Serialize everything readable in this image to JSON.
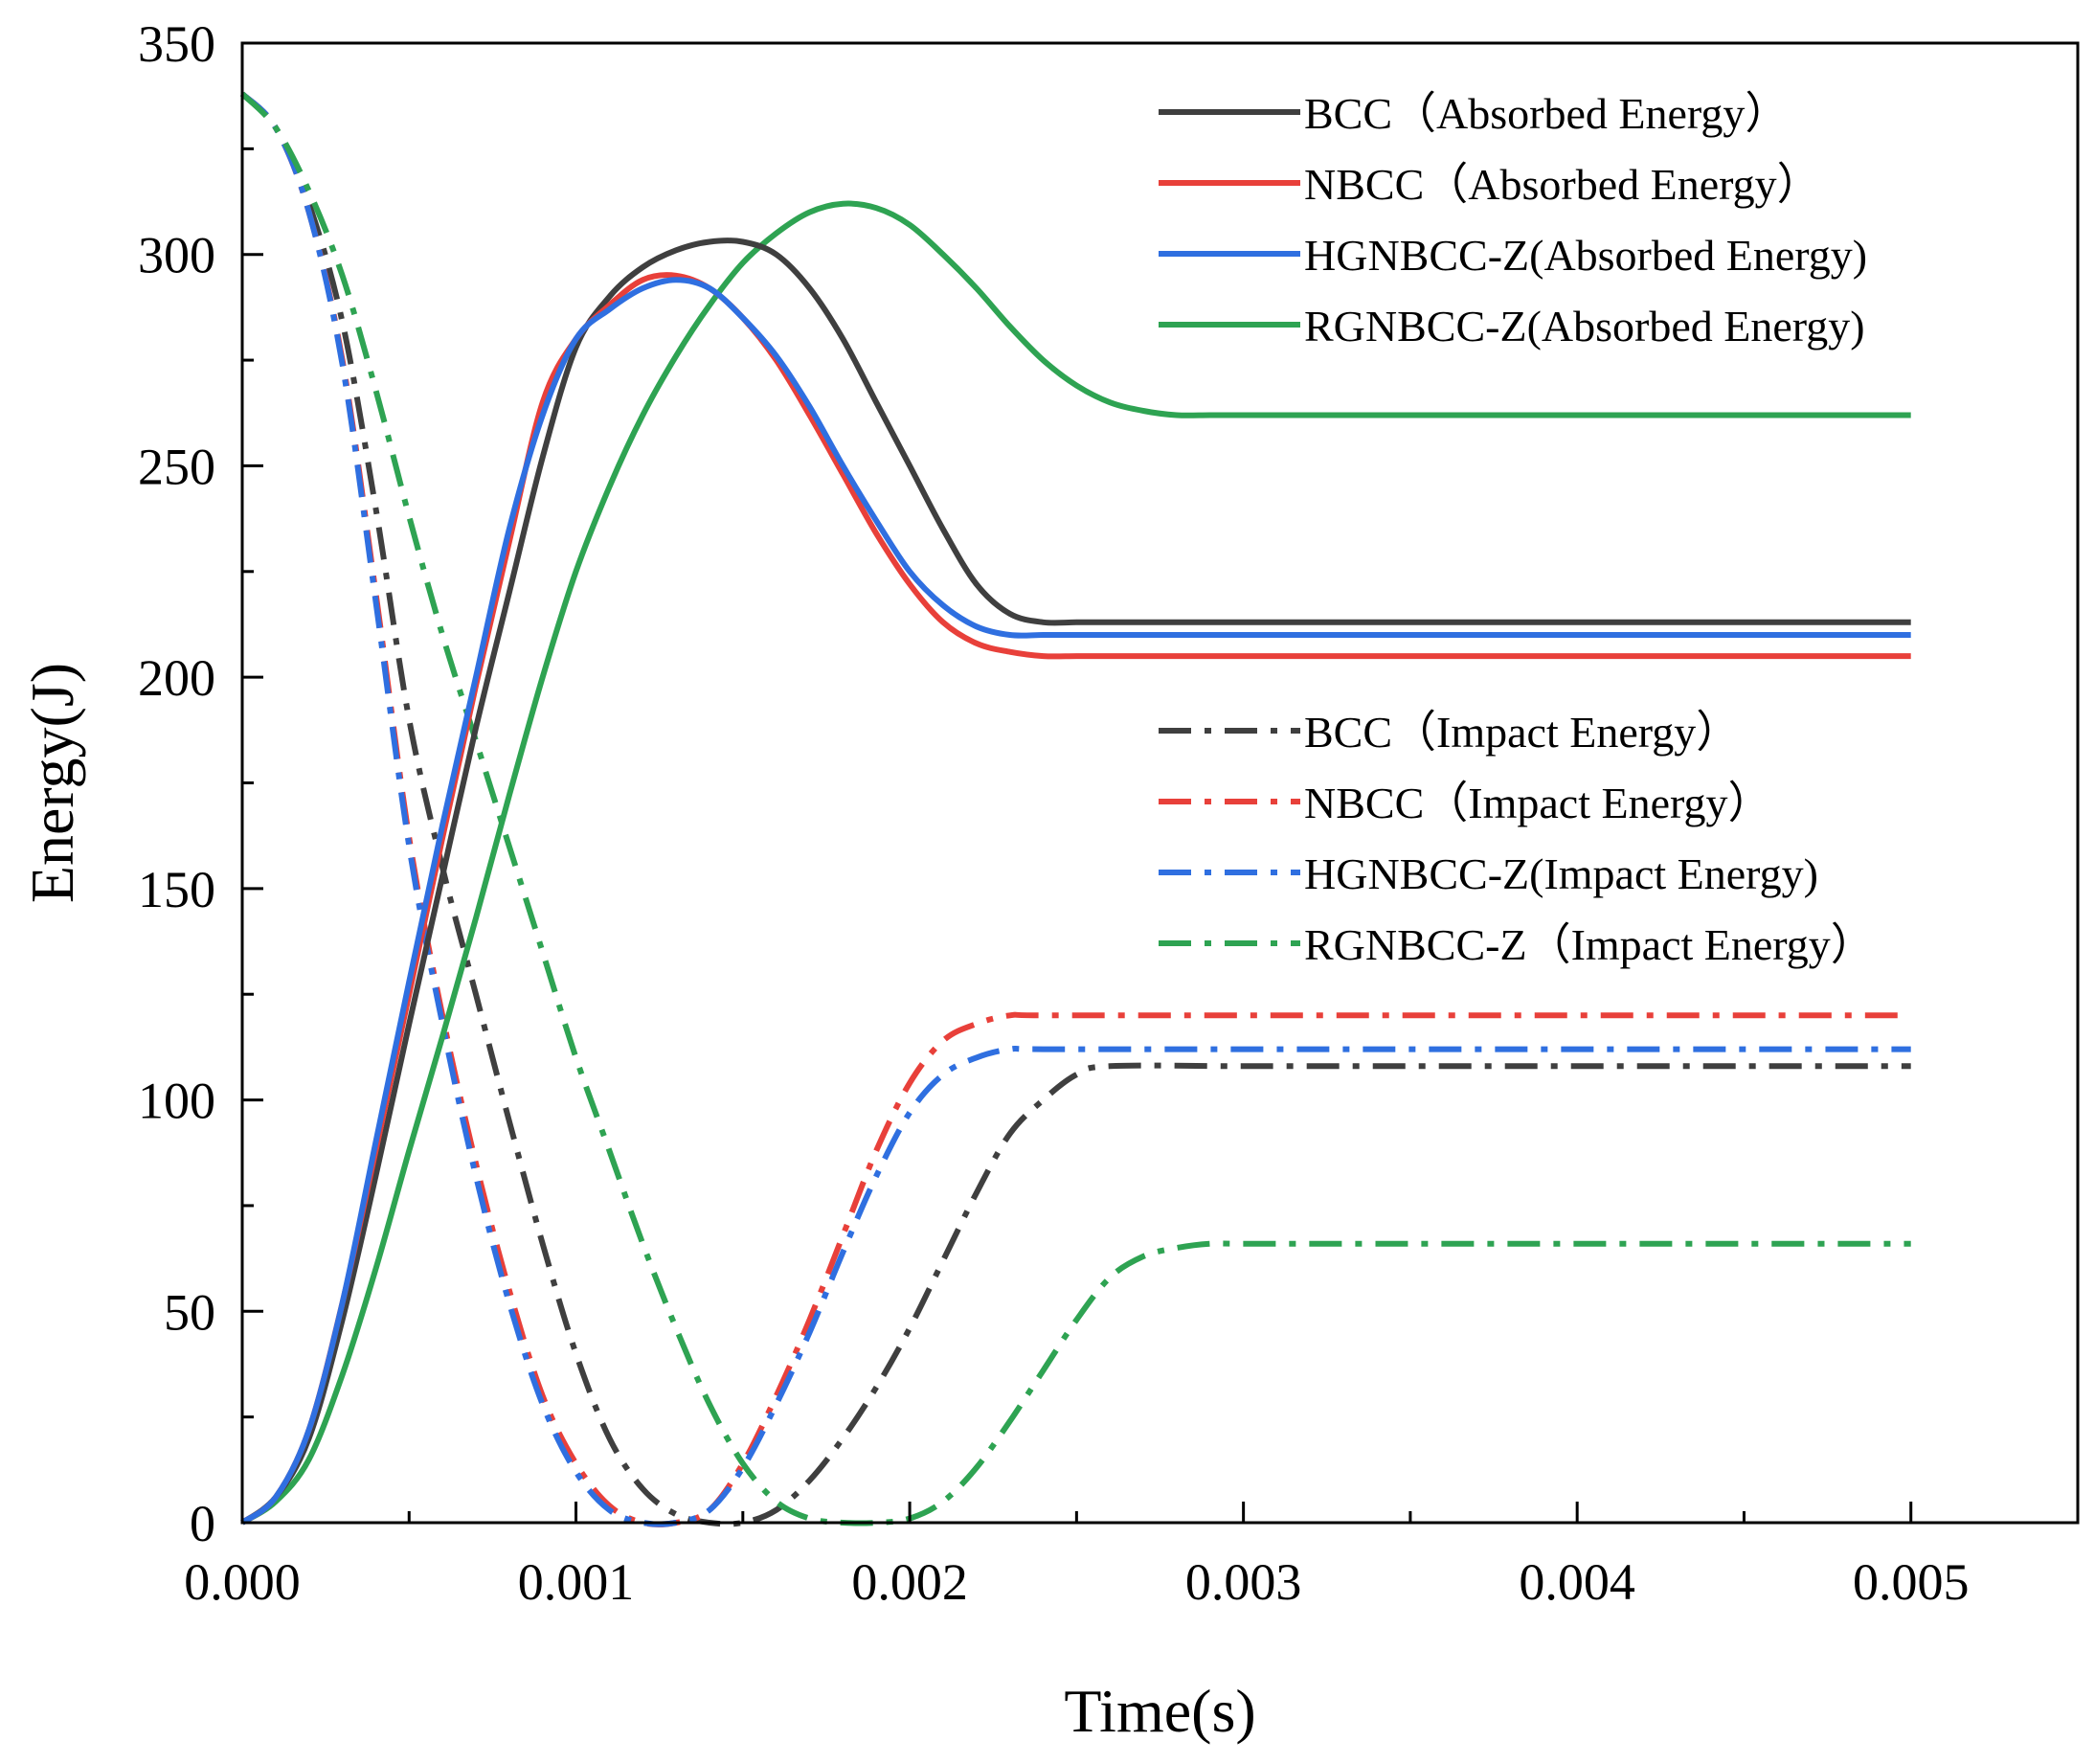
{
  "chart_data": {
    "type": "line",
    "title": "",
    "xlabel": "Time(s)",
    "ylabel": "Energy(J)",
    "xlim": [
      0,
      0.0055
    ],
    "ylim": [
      0,
      350
    ],
    "xticks": [
      0.0,
      0.001,
      0.002,
      0.003,
      0.004,
      0.005
    ],
    "xtick_labels": [
      "0.000",
      "0.001",
      "0.002",
      "0.003",
      "0.004",
      "0.005"
    ],
    "yticks": [
      0,
      50,
      100,
      150,
      200,
      250,
      300,
      350
    ],
    "ytick_labels": [
      "0",
      "50",
      "100",
      "150",
      "200",
      "250",
      "300",
      "350"
    ],
    "grid": false,
    "legend_position": "right",
    "series": [
      {
        "name": "BCC（Absorbed Energy）",
        "group": "absorbed",
        "style": "solid",
        "color": "#3f3f3f",
        "x": [
          0,
          0.0001,
          0.0002,
          0.0003,
          0.0004,
          0.0005,
          0.0006,
          0.0007,
          0.0008,
          0.0009,
          0.001,
          0.0011,
          0.0012,
          0.0013,
          0.0014,
          0.0015,
          0.0016,
          0.0017,
          0.0018,
          0.0019,
          0.002,
          0.0021,
          0.0022,
          0.0023,
          0.0024,
          0.0025,
          0.0026,
          0.0027,
          0.0028,
          0.003,
          0.0035,
          0.004,
          0.0045,
          0.005
        ],
        "y": [
          0,
          6,
          20,
          48,
          82,
          118,
          153,
          188,
          220,
          252,
          278,
          290,
          297,
          301,
          303,
          303,
          300,
          292,
          280,
          265,
          250,
          235,
          222,
          215,
          213,
          213,
          213,
          213,
          213,
          213,
          213,
          213,
          213,
          213
        ]
      },
      {
        "name": "NBCC（Absorbed Energy）",
        "group": "absorbed",
        "style": "solid",
        "color": "#e8403a",
        "x": [
          0,
          0.0001,
          0.0002,
          0.0003,
          0.0004,
          0.0005,
          0.0006,
          0.0007,
          0.0008,
          0.0009,
          0.001,
          0.0011,
          0.0012,
          0.0013,
          0.0014,
          0.0015,
          0.0016,
          0.0017,
          0.0018,
          0.0019,
          0.002,
          0.0021,
          0.0022,
          0.0023,
          0.0024,
          0.0025,
          0.0026,
          0.003,
          0.0035,
          0.004,
          0.0045,
          0.005
        ],
        "y": [
          0,
          6,
          22,
          52,
          88,
          125,
          162,
          198,
          232,
          265,
          280,
          288,
          294,
          295,
          292,
          285,
          275,
          262,
          248,
          234,
          222,
          213,
          208,
          206,
          205,
          205,
          205,
          205,
          205,
          205,
          205,
          205
        ]
      },
      {
        "name": "HGNBCC-Z(Absorbed Energy)",
        "group": "absorbed",
        "style": "solid",
        "color": "#2f6fe0",
        "x": [
          0,
          0.0001,
          0.0002,
          0.0003,
          0.0004,
          0.0005,
          0.0006,
          0.0007,
          0.0008,
          0.0009,
          0.001,
          0.0011,
          0.0012,
          0.0013,
          0.0014,
          0.0015,
          0.0016,
          0.0017,
          0.0018,
          0.0019,
          0.002,
          0.0021,
          0.0022,
          0.0023,
          0.0024,
          0.0025,
          0.0026,
          0.003,
          0.0035,
          0.004,
          0.0045,
          0.005
        ],
        "y": [
          0,
          6,
          22,
          52,
          90,
          128,
          165,
          200,
          235,
          262,
          280,
          287,
          292,
          294,
          292,
          285,
          276,
          264,
          250,
          237,
          225,
          217,
          212,
          210,
          210,
          210,
          210,
          210,
          210,
          210,
          210,
          210
        ]
      },
      {
        "name": "RGNBCC-Z(Absorbed Energy)",
        "group": "absorbed",
        "style": "solid",
        "color": "#2ea352",
        "x": [
          0,
          0.0001,
          0.0002,
          0.0003,
          0.0004,
          0.0005,
          0.0006,
          0.0007,
          0.0008,
          0.0009,
          0.001,
          0.0011,
          0.0012,
          0.0013,
          0.0014,
          0.0015,
          0.0016,
          0.0017,
          0.0018,
          0.0019,
          0.002,
          0.0021,
          0.0022,
          0.0023,
          0.0024,
          0.0025,
          0.0026,
          0.0027,
          0.0028,
          0.0029,
          0.003,
          0.0035,
          0.004,
          0.0045,
          0.005
        ],
        "y": [
          0,
          5,
          15,
          35,
          60,
          88,
          115,
          143,
          172,
          200,
          225,
          245,
          262,
          276,
          288,
          298,
          305,
          310,
          312,
          311,
          307,
          300,
          292,
          283,
          275,
          269,
          265,
          263,
          262,
          262,
          262,
          262,
          262,
          262,
          262
        ]
      },
      {
        "name": "BCC（Impact Energy）",
        "group": "impact",
        "style": "dashdot",
        "color": "#3f3f3f",
        "x": [
          0,
          0.0001,
          0.0002,
          0.0003,
          0.0004,
          0.0005,
          0.0006,
          0.0007,
          0.0008,
          0.0009,
          0.001,
          0.0011,
          0.0012,
          0.0013,
          0.0014,
          0.0015,
          0.0016,
          0.0017,
          0.0018,
          0.0019,
          0.002,
          0.0021,
          0.0022,
          0.0023,
          0.0024,
          0.0025,
          0.0026,
          0.003,
          0.0035,
          0.004,
          0.0045,
          0.005
        ],
        "y": [
          338,
          330,
          312,
          284,
          240,
          190,
          155,
          125,
          95,
          66,
          40,
          20,
          8,
          2,
          0,
          0,
          3,
          10,
          20,
          32,
          46,
          62,
          78,
          92,
          100,
          106,
          108,
          108,
          108,
          108,
          108,
          108
        ]
      },
      {
        "name": "NBCC（Impact Energy）",
        "group": "impact",
        "style": "dashdot",
        "color": "#e8403a",
        "x": [
          0,
          0.0001,
          0.0002,
          0.0003,
          0.0004,
          0.0005,
          0.0006,
          0.0007,
          0.0008,
          0.0009,
          0.001,
          0.0011,
          0.0012,
          0.0013,
          0.0014,
          0.0015,
          0.0016,
          0.0017,
          0.0018,
          0.0019,
          0.002,
          0.0021,
          0.0022,
          0.0023,
          0.0024,
          0.003,
          0.0035,
          0.004,
          0.0045,
          0.005
        ],
        "y": [
          338,
          330,
          310,
          275,
          220,
          162,
          120,
          85,
          55,
          30,
          14,
          4,
          0,
          0,
          3,
          14,
          30,
          48,
          68,
          88,
          104,
          114,
          118,
          120,
          120,
          120,
          120,
          120,
          120,
          120
        ]
      },
      {
        "name": "HGNBCC-Z(Impact Energy)",
        "group": "impact",
        "style": "dashdot",
        "color": "#2f6fe0",
        "x": [
          0,
          0.0001,
          0.0002,
          0.0003,
          0.0004,
          0.0005,
          0.0006,
          0.0007,
          0.0008,
          0.0009,
          0.001,
          0.0011,
          0.0012,
          0.0013,
          0.0014,
          0.0015,
          0.0016,
          0.0017,
          0.0018,
          0.0019,
          0.002,
          0.0021,
          0.0022,
          0.0023,
          0.0024,
          0.003,
          0.0035,
          0.004,
          0.0045,
          0.005
        ],
        "y": [
          338,
          330,
          310,
          274,
          218,
          160,
          118,
          82,
          52,
          28,
          12,
          3,
          0,
          0,
          3,
          13,
          28,
          45,
          64,
          82,
          97,
          106,
          110,
          112,
          112,
          112,
          112,
          112,
          112,
          112
        ]
      },
      {
        "name": "RGNBCC-Z（Impact Energy）",
        "group": "impact",
        "style": "dashdot",
        "color": "#2ea352",
        "x": [
          0,
          0.0001,
          0.0002,
          0.0003,
          0.0004,
          0.0005,
          0.0006,
          0.0007,
          0.0008,
          0.0009,
          0.001,
          0.0011,
          0.0012,
          0.0013,
          0.0014,
          0.0015,
          0.0016,
          0.0017,
          0.0018,
          0.0019,
          0.002,
          0.0021,
          0.0022,
          0.0023,
          0.0024,
          0.0025,
          0.0026,
          0.0027,
          0.0028,
          0.0029,
          0.003,
          0.0035,
          0.004,
          0.0045,
          0.005
        ],
        "y": [
          338,
          330,
          315,
          295,
          268,
          238,
          210,
          185,
          160,
          135,
          110,
          88,
          66,
          46,
          28,
          14,
          5,
          1,
          0,
          0,
          1,
          5,
          13,
          24,
          36,
          48,
          58,
          63,
          65,
          66,
          66,
          66,
          66,
          66,
          66
        ]
      }
    ]
  }
}
